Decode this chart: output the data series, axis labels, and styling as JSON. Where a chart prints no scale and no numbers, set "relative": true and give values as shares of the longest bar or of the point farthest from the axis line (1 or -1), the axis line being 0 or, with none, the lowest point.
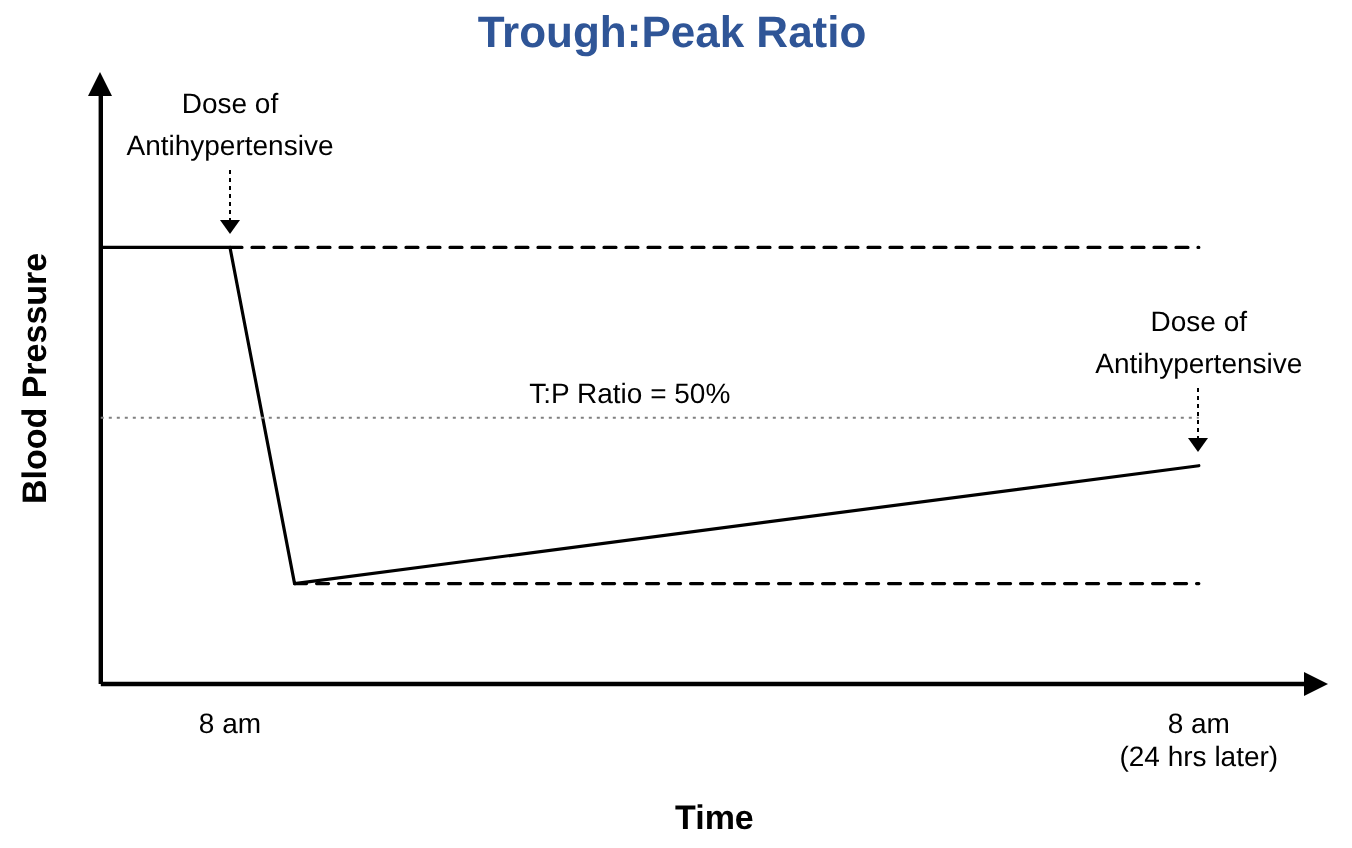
{
  "chart_data": {
    "type": "line",
    "title": "Trough:Peak Ratio",
    "xlabel": "Time",
    "ylabel": "Blood Pressure",
    "relative": true,
    "categories": [
      null,
      null,
      "8 am",
      null,
      null,
      null,
      null,
      null,
      null,
      null,
      null,
      null,
      null,
      null,
      null,
      null,
      null,
      "8 am\n(24 hrs later)",
      null,
      null
    ],
    "series": [
      {
        "color": "#000000",
        "values": [
          1,
          null,
          1,
          0.23,
          null,
          null,
          null,
          null,
          null,
          null,
          null,
          null,
          null,
          null,
          null,
          null,
          null,
          0.5,
          null,
          null
        ],
        "line_style": "solid"
      },
      {
        "color": "#000000",
        "values": [
          null,
          null,
          1,
          null,
          null,
          null,
          null,
          null,
          null,
          null,
          null,
          null,
          null,
          null,
          null,
          null,
          null,
          1,
          null,
          null
        ],
        "line_style": "dashed"
      },
      {
        "color": "#000000",
        "values": [
          null,
          null,
          null,
          0.23,
          null,
          null,
          null,
          null,
          null,
          null,
          null,
          null,
          null,
          null,
          null,
          null,
          null,
          0.23,
          null,
          null
        ],
        "line_style": "dashed"
      }
    ],
    "ref_lines": [
      {
        "axis": "y",
        "value": 0.61,
        "color": "#808080",
        "line_style": "dotted"
      }
    ],
    "annotations": [
      "T:P Ratio = 50%",
      "Dose of\nAntihypertensive",
      "Dose of\nAntihypertensive"
    ],
    "grid": false,
    "legend": false,
    "marker": "none"
  }
}
